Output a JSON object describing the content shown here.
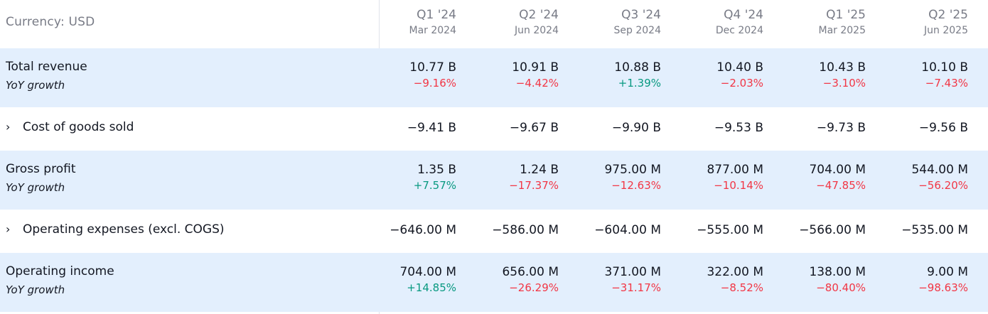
{
  "currency_label": "Currency: USD",
  "colors": {
    "positive": "#089981",
    "negative": "#f23645",
    "highlight_row": "#e3effd",
    "muted": "#787b86"
  },
  "columns": [
    {
      "quarter": "Q1 '24",
      "date": "Mar 2024"
    },
    {
      "quarter": "Q2 '24",
      "date": "Jun 2024"
    },
    {
      "quarter": "Q3 '24",
      "date": "Sep 2024"
    },
    {
      "quarter": "Q4 '24",
      "date": "Dec 2024"
    },
    {
      "quarter": "Q1 '25",
      "date": "Mar 2025"
    },
    {
      "quarter": "Q2 '25",
      "date": "Jun 2025"
    }
  ],
  "rows": [
    {
      "label": "Total revenue",
      "expandable": false,
      "highlight": true,
      "sub_label": "YoY growth",
      "values": [
        "10.77 B",
        "10.91 B",
        "10.88 B",
        "10.40 B",
        "10.43 B",
        "10.10 B"
      ],
      "growth": [
        "−9.16%",
        "−4.42%",
        "+1.39%",
        "−2.03%",
        "−3.10%",
        "−7.43%"
      ]
    },
    {
      "label": "Cost of goods sold",
      "expandable": true,
      "expand_glyph": "›",
      "highlight": false,
      "values": [
        "−9.41 B",
        "−9.67 B",
        "−9.90 B",
        "−9.53 B",
        "−9.73 B",
        "−9.56 B"
      ]
    },
    {
      "label": "Gross profit",
      "expandable": false,
      "highlight": true,
      "sub_label": "YoY growth",
      "values": [
        "1.35 B",
        "1.24 B",
        "975.00 M",
        "877.00 M",
        "704.00 M",
        "544.00 M"
      ],
      "growth": [
        "+7.57%",
        "−17.37%",
        "−12.63%",
        "−10.14%",
        "−47.85%",
        "−56.20%"
      ]
    },
    {
      "label": "Operating expenses (excl. COGS)",
      "expandable": true,
      "expand_glyph": "›",
      "highlight": false,
      "values": [
        "−646.00 M",
        "−586.00 M",
        "−604.00 M",
        "−555.00 M",
        "−566.00 M",
        "−535.00 M"
      ]
    },
    {
      "label": "Operating income",
      "expandable": false,
      "highlight": true,
      "sub_label": "YoY growth",
      "values": [
        "704.00 M",
        "656.00 M",
        "371.00 M",
        "322.00 M",
        "138.00 M",
        "9.00 M"
      ],
      "growth": [
        "+14.85%",
        "−26.29%",
        "−31.17%",
        "−8.52%",
        "−80.40%",
        "−98.63%"
      ]
    }
  ]
}
